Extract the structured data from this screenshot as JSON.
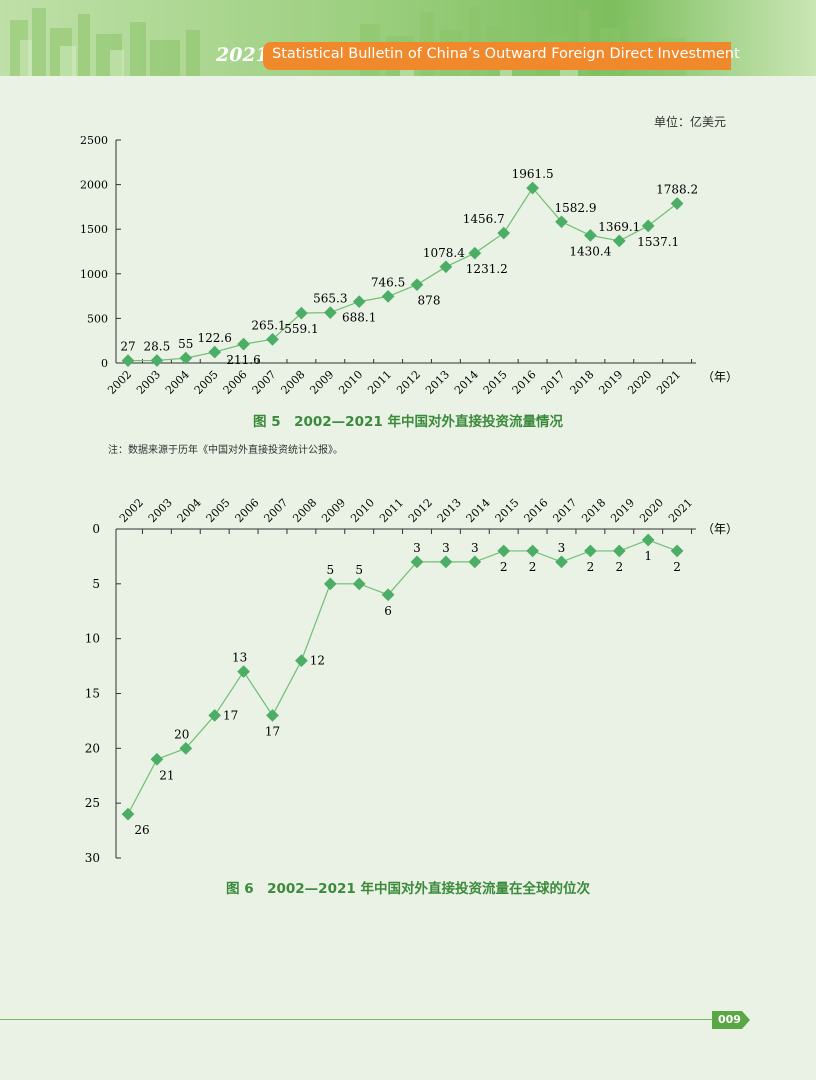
{
  "header": {
    "year": "2021",
    "title": "Statistical Bulletin of China’s Outward Foreign Direct Investment"
  },
  "unit": "单位：亿美元",
  "note": "注：数据来源于历年《中国对外直接投资统计公报》。",
  "page_number": "009",
  "colors": {
    "accent": "#3b8a3b",
    "marker": "#4cae66",
    "line": "#6fbf72",
    "orange": "#f0892c"
  },
  "chart_data": [
    {
      "type": "line",
      "title": "图 5　2002—2021 年中国对外直接投资流量情况",
      "xlabel": "（年）",
      "ylabel": "",
      "x": [
        "2002",
        "2003",
        "2004",
        "2005",
        "2006",
        "2007",
        "2008",
        "2009",
        "2010",
        "2011",
        "2012",
        "2013",
        "2014",
        "2015",
        "2016",
        "2017",
        "2018",
        "2019",
        "2020",
        "2021"
      ],
      "series": [
        {
          "values": [
            27,
            28.5,
            55,
            122.6,
            211.6,
            265.1,
            559.1,
            565.3,
            688.1,
            746.5,
            878,
            1078.4,
            1231.2,
            1456.7,
            1961.5,
            1582.9,
            1430.4,
            1369.1,
            1537.1,
            1788.2
          ],
          "labels": [
            "27",
            "28.5",
            "55",
            "122.6",
            "211.6",
            "265.1",
            "559.1",
            "565.3",
            "688.1",
            "746.5",
            "878",
            "1078.4",
            "1231.2",
            "1456.7",
            "1961.5",
            "1582.9",
            "1430.4",
            "1369.1",
            "1537.1",
            "1788.2"
          ]
        }
      ],
      "ylim": [
        0,
        2500
      ],
      "yticks": [
        "0",
        "500",
        "1000",
        "1500",
        "2000",
        "2500"
      ],
      "ytick_values": [
        0,
        500,
        1000,
        1500,
        2000,
        2500
      ],
      "grid": false
    },
    {
      "type": "line",
      "title": "图 6　2002—2021 年中国对外直接投资流量在全球的位次",
      "xlabel": "（年）",
      "ylabel": "",
      "x": [
        "2002",
        "2003",
        "2004",
        "2005",
        "2006",
        "2007",
        "2008",
        "2009",
        "2010",
        "2011",
        "2012",
        "2013",
        "2014",
        "2015",
        "2016",
        "2017",
        "2018",
        "2019",
        "2020",
        "2021"
      ],
      "series": [
        {
          "values": [
            26,
            21,
            20,
            17,
            13,
            17,
            12,
            5,
            5,
            6,
            3,
            3,
            3,
            2,
            2,
            3,
            2,
            2,
            1,
            2
          ],
          "labels": [
            "26",
            "21",
            "20",
            "17",
            "13",
            "17",
            "12",
            "5",
            "5",
            "6",
            "3",
            "3",
            "3",
            "2",
            "2",
            "3",
            "2",
            "2",
            "1",
            "2"
          ]
        }
      ],
      "ylim": [
        0,
        30
      ],
      "y_inverted": true,
      "yticks": [
        "0",
        "5",
        "10",
        "15",
        "20",
        "25",
        "30"
      ],
      "ytick_values": [
        0,
        5,
        10,
        15,
        20,
        25,
        30
      ],
      "x_axis_position": "top",
      "grid": false
    }
  ]
}
